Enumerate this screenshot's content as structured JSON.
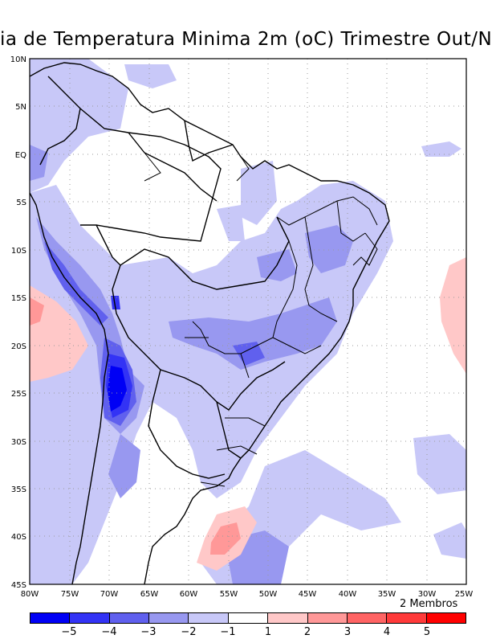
{
  "title": "ia de Temperatura Minima 2m (oC) Trimestre Out/N",
  "members_note": "2 Membros",
  "lat_ticks": [
    "10N",
    "5N",
    "EQ",
    "5S",
    "10S",
    "15S",
    "20S",
    "25S",
    "30S",
    "35S",
    "40S",
    "45S"
  ],
  "lon_ticks": [
    "80W",
    "75W",
    "70W",
    "65W",
    "60W",
    "55W",
    "50W",
    "45W",
    "40W",
    "35W",
    "30W",
    "25W"
  ],
  "legend": {
    "labels": [
      "−5",
      "−4",
      "−3",
      "−2",
      "−1",
      "1",
      "2",
      "3",
      "4",
      "5"
    ],
    "colors": [
      "#0000f5",
      "#3333f5",
      "#6060ee",
      "#9898f0",
      "#c8c8f8",
      "#ffffff",
      "#ffc8c8",
      "#ff9898",
      "#ff6464",
      "#ff3a3a",
      "#ff0000"
    ]
  },
  "chart_data": {
    "type": "heatmap",
    "title": "ia de Temperatura Minima 2m (oC) Trimestre Out/N",
    "xlim": [
      "80W",
      "25W"
    ],
    "ylim": [
      "45S",
      "10N"
    ],
    "grid": true,
    "legend_position": "bottom",
    "contour_levels": [
      -5,
      -4,
      -3,
      -2,
      -1,
      1,
      2,
      3,
      4,
      5
    ],
    "annotation": "2 Membros"
  }
}
